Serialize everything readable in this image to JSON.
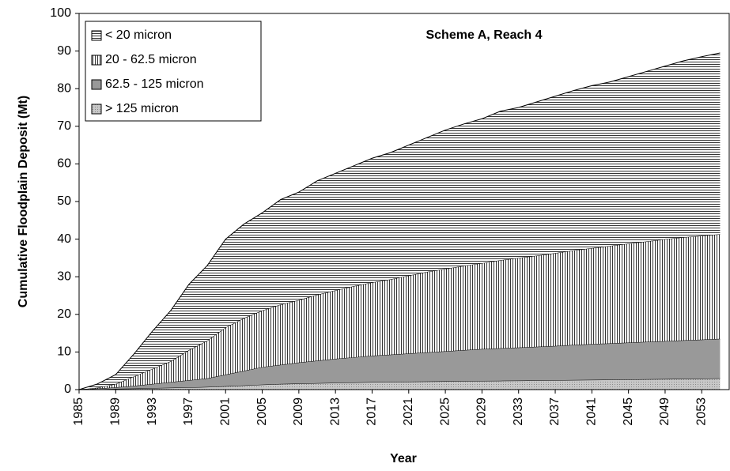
{
  "chart_data": {
    "type": "stacked_area",
    "title": "Scheme A, Reach 4",
    "x_label": "Year",
    "y_label": "Cumulative Floodplain Deposit (Mt)",
    "x": [
      1985,
      1987,
      1989,
      1991,
      1993,
      1995,
      1997,
      1999,
      2001,
      2003,
      2005,
      2007,
      2009,
      2011,
      2013,
      2015,
      2017,
      2019,
      2021,
      2023,
      2025,
      2027,
      2029,
      2031,
      2033,
      2035,
      2037,
      2039,
      2041,
      2043,
      2045,
      2047,
      2049,
      2051,
      2053,
      2055
    ],
    "series": [
      {
        "name": "> 125 micron",
        "color": "#b0b0b0",
        "pattern": "dots",
        "values": [
          0,
          0.1,
          0.2,
          0.3,
          0.4,
          0.5,
          0.6,
          0.7,
          0.9,
          1.1,
          1.3,
          1.5,
          1.6,
          1.7,
          1.8,
          1.9,
          2.0,
          2.05,
          2.1,
          2.15,
          2.2,
          2.25,
          2.3,
          2.35,
          2.4,
          2.45,
          2.5,
          2.55,
          2.6,
          2.65,
          2.7,
          2.75,
          2.8,
          2.85,
          2.9,
          3.0
        ]
      },
      {
        "name": "62.5 - 125 micron",
        "color": "#999999",
        "pattern": "solid",
        "values": [
          0,
          0.2,
          0.4,
          0.7,
          1.1,
          1.5,
          1.9,
          2.3,
          3.1,
          3.9,
          4.7,
          5.1,
          5.6,
          6,
          6.4,
          6.7,
          7,
          7.25,
          7.5,
          7.75,
          8,
          8.25,
          8.5,
          8.65,
          8.8,
          8.95,
          9.1,
          9.35,
          9.5,
          9.65,
          9.8,
          9.95,
          10.1,
          10.25,
          10.4,
          10.5
        ]
      },
      {
        "name": "20 - 62.5 micron",
        "color": "#000000",
        "pattern": "vertical",
        "values": [
          0,
          0.2,
          0.9,
          2.5,
          4,
          5.5,
          8,
          10,
          12.5,
          14,
          15,
          16,
          16.6,
          17.5,
          18.2,
          18.9,
          19.5,
          20,
          20.7,
          21.4,
          21.9,
          22.4,
          22.8,
          23.4,
          23.8,
          24.2,
          24.7,
          25.1,
          25.5,
          25.9,
          26.3,
          26.7,
          27.1,
          27.4,
          27.6,
          27.8
        ]
      },
      {
        "name": "< 20 micron",
        "color": "#000000",
        "pattern": "horizontal",
        "values": [
          0,
          1,
          2.5,
          6,
          10,
          13.5,
          17.5,
          20,
          23.5,
          25,
          26,
          27.9,
          28.7,
          30.3,
          31.1,
          32,
          33,
          33.7,
          34.7,
          35.7,
          36.9,
          37.7,
          38.4,
          39.6,
          40,
          40.9,
          41.7,
          42.5,
          43.2,
          43.6,
          44.4,
          45.2,
          46,
          46.9,
          47.6,
          48.2
        ]
      }
    ],
    "xlim": [
      1985,
      2056
    ],
    "xticks": [
      1985,
      1989,
      1993,
      1997,
      2001,
      2005,
      2009,
      2013,
      2017,
      2021,
      2025,
      2029,
      2033,
      2037,
      2041,
      2045,
      2049,
      2053
    ],
    "ylim": [
      0,
      100
    ],
    "yticks": [
      0,
      10,
      20,
      30,
      40,
      50,
      60,
      70,
      80,
      90,
      100
    ],
    "grid": false,
    "legend": "top-left"
  }
}
